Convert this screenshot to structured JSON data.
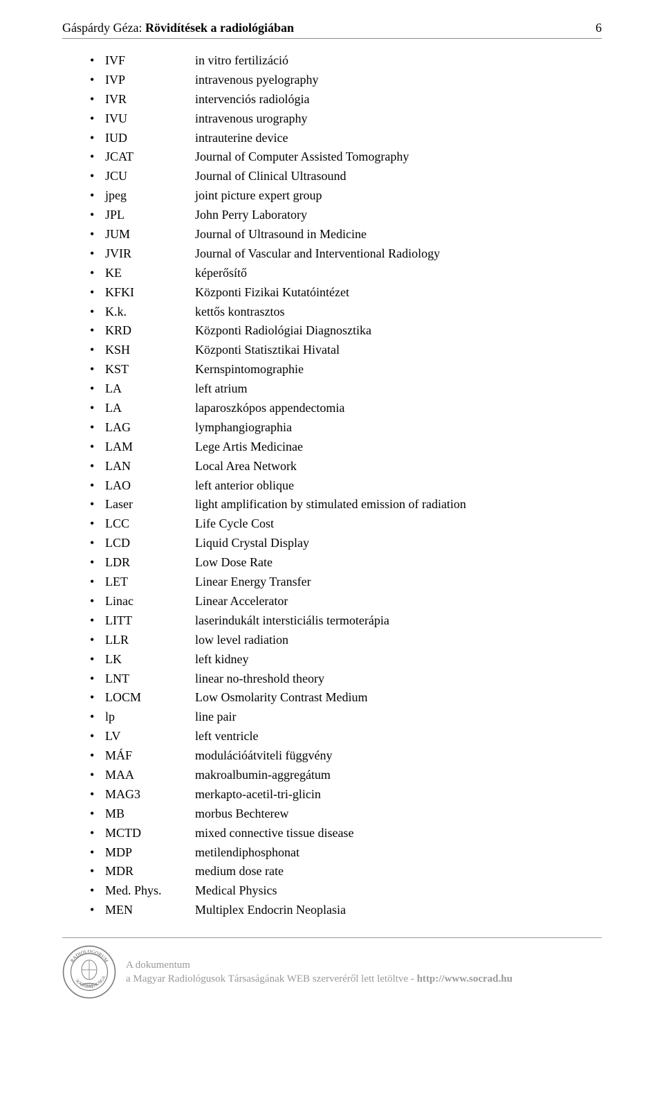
{
  "header": {
    "author": "Gáspárdy Géza: ",
    "title_bold": "Rövidítések a radiológiában",
    "page_number": "6"
  },
  "entries": [
    {
      "abbr": "IVF",
      "def": "in vitro fertilizáció"
    },
    {
      "abbr": "IVP",
      "def": "intravenous pyelography"
    },
    {
      "abbr": "IVR",
      "def": "intervenciós radiológia"
    },
    {
      "abbr": "IVU",
      "def": "intravenous urography"
    },
    {
      "abbr": "IUD",
      "def": "intrauterine device"
    },
    {
      "abbr": "JCAT",
      "def": "Journal of Computer Assisted Tomography"
    },
    {
      "abbr": "JCU",
      "def": "Journal of Clinical Ultrasound"
    },
    {
      "abbr": "jpeg",
      "def": "joint picture expert group"
    },
    {
      "abbr": "JPL",
      "def": "John Perry Laboratory"
    },
    {
      "abbr": "JUM",
      "def": "Journal of Ultrasound in Medicine"
    },
    {
      "abbr": "JVIR",
      "def": "Journal of Vascular and Interventional Radiology"
    },
    {
      "abbr": "KE",
      "def": "képerősítő"
    },
    {
      "abbr": "KFKI",
      "def": "Központi Fizikai Kutatóintézet"
    },
    {
      "abbr": "K.k.",
      "def": "kettős kontrasztos"
    },
    {
      "abbr": "KRD",
      "def": "Központi Radiológiai Diagnosztika"
    },
    {
      "abbr": "KSH",
      "def": "Központi Statisztikai Hivatal"
    },
    {
      "abbr": "KST",
      "def": "Kernspintomographie"
    },
    {
      "abbr": "LA",
      "def": "left atrium"
    },
    {
      "abbr": "LA",
      "def": "laparoszkópos appendectomia"
    },
    {
      "abbr": "LAG",
      "def": "lymphangiographia"
    },
    {
      "abbr": "LAM",
      "def": "Lege Artis Medicinae"
    },
    {
      "abbr": "LAN",
      "def": "Local Area Network"
    },
    {
      "abbr": "LAO",
      "def": "left anterior oblique"
    },
    {
      "abbr": "Laser",
      "def": "light amplification by stimulated emission of radiation"
    },
    {
      "abbr": "LCC",
      "def": "Life Cycle Cost"
    },
    {
      "abbr": "LCD",
      "def": "Liquid Crystal Display"
    },
    {
      "abbr": "LDR",
      "def": "Low Dose Rate"
    },
    {
      "abbr": "LET",
      "def": "Linear Energy Transfer"
    },
    {
      "abbr": "Linac",
      "def": "Linear Accelerator"
    },
    {
      "abbr": "LITT",
      "def": "laserindukált intersticiális termoterápia"
    },
    {
      "abbr": "LLR",
      "def": "low level radiation"
    },
    {
      "abbr": "LK",
      "def": "left kidney"
    },
    {
      "abbr": "LNT",
      "def": "linear no-threshold theory"
    },
    {
      "abbr": "LOCM",
      "def": "Low Osmolarity Contrast Medium"
    },
    {
      "abbr": "lp",
      "def": "line pair"
    },
    {
      "abbr": "LV",
      "def": "left ventricle"
    },
    {
      "abbr": "MÁF",
      "def": "modulációátviteli függvény"
    },
    {
      "abbr": "MAA",
      "def": "makroalbumin-aggregátum"
    },
    {
      "abbr": "MAG3",
      "def": "merkapto-acetil-tri-glicin"
    },
    {
      "abbr": "MB",
      "def": "morbus Bechterew"
    },
    {
      "abbr": "MCTD",
      "def": "mixed connective tissue disease"
    },
    {
      "abbr": "MDP",
      "def": "metilendiphosphonat"
    },
    {
      "abbr": "MDR",
      "def": "medium dose rate"
    },
    {
      "abbr": "Med. Phys.",
      "def": "Medical Physics"
    },
    {
      "abbr": "MEN",
      "def": "Multiplex Endocrin Neoplasia"
    }
  ],
  "footer": {
    "line1": "A dokumentum",
    "line2_prefix": "a Magyar Radiológusok Társaságának WEB szerveréről lett letöltve  -  ",
    "url": "http://www.socrad.hu",
    "seal_top": "RADIOLOGORUM",
    "seal_left": "SOCIETAS",
    "seal_right": "HUNGARICA",
    "seal_year": "1922"
  }
}
